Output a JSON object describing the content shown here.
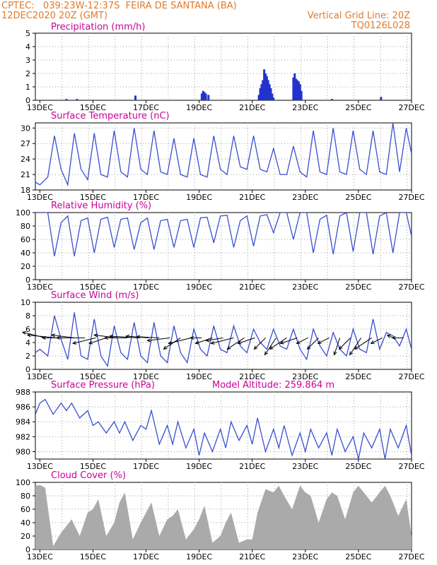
{
  "header": {
    "left_line1": "CPTEC:   039:23W-12:37S  FEIRA DE SANTANA (BA)",
    "left_line2": "12DEC2020 20Z (GMT)",
    "right_line1": "Vertical Grid Line: 20Z",
    "right_line2": "TQ0126L028"
  },
  "colors": {
    "header": "#e07a2c",
    "title": "#cc0099",
    "line": "#3a4fd0",
    "bar": "#2233cc",
    "cloud": "#aaaaaa",
    "grid": "#a0a0a0"
  },
  "x_ticks": [
    "13DEC",
    "15DEC",
    "17DEC",
    "19DEC",
    "21DEC",
    "23DEC",
    "25DEC",
    "27DEC"
  ],
  "x_tick_days": [
    13,
    15,
    17,
    19,
    21,
    23,
    25,
    27
  ],
  "x_range_days": [
    12.83,
    27.0
  ],
  "model_altitude": "Model Altitude: 259.864 m",
  "chart_data": [
    {
      "type": "bar",
      "title": "Precipitation (mm/h)",
      "ylim": [
        0,
        5
      ],
      "yticks": [
        0,
        1,
        2,
        3,
        4,
        5
      ],
      "x_days": [
        14.0,
        14.4,
        16.6,
        19.1,
        19.15,
        19.2,
        19.25,
        19.35,
        21.25,
        21.3,
        21.35,
        21.4,
        21.45,
        21.5,
        21.55,
        21.6,
        21.65,
        21.7,
        21.75,
        21.8,
        22.55,
        22.6,
        22.65,
        22.7,
        22.75,
        22.8,
        22.85,
        24.0,
        25.85
      ],
      "values": [
        0.1,
        0.1,
        0.35,
        0.5,
        0.7,
        0.6,
        0.5,
        0.4,
        0.4,
        0.9,
        1.2,
        1.5,
        2.3,
        2.0,
        1.8,
        1.5,
        1.2,
        0.9,
        0.5,
        0.2,
        1.7,
        2.0,
        1.6,
        1.5,
        1.4,
        1.2,
        0.7,
        0.1,
        0.25
      ]
    },
    {
      "type": "line",
      "title": "Surface Temperature (nC)",
      "ylim": [
        18,
        31
      ],
      "yticks": [
        18,
        21,
        24,
        27,
        30
      ],
      "x_days": [
        12.83,
        13.0,
        13.3,
        13.55,
        13.8,
        14.05,
        14.3,
        14.55,
        14.8,
        15.05,
        15.3,
        15.55,
        15.8,
        16.05,
        16.3,
        16.55,
        16.8,
        17.05,
        17.3,
        17.55,
        17.8,
        18.05,
        18.3,
        18.55,
        18.8,
        19.05,
        19.3,
        19.55,
        19.8,
        20.05,
        20.3,
        20.55,
        20.8,
        21.05,
        21.3,
        21.55,
        21.8,
        22.05,
        22.3,
        22.55,
        22.8,
        23.05,
        23.3,
        23.55,
        23.8,
        24.05,
        24.3,
        24.55,
        24.8,
        25.05,
        25.3,
        25.55,
        25.8,
        26.05,
        26.3,
        26.55,
        26.8,
        27.0
      ],
      "values": [
        19.5,
        19.0,
        20.5,
        28.5,
        22.0,
        19.0,
        29.0,
        22.0,
        20.0,
        29.0,
        21.0,
        20.5,
        29.5,
        21.5,
        20.5,
        30.0,
        22.0,
        21.0,
        29.5,
        21.5,
        21.0,
        28.0,
        21.0,
        20.5,
        28.0,
        21.0,
        20.5,
        28.5,
        22.0,
        21.0,
        28.5,
        22.5,
        22.0,
        28.5,
        22.0,
        21.5,
        26.0,
        21.0,
        21.0,
        26.5,
        21.5,
        20.5,
        29.5,
        21.5,
        21.0,
        30.0,
        21.5,
        21.0,
        29.5,
        22.0,
        21.0,
        29.5,
        21.5,
        21.0,
        31.0,
        21.5,
        30.0,
        25.0
      ]
    },
    {
      "type": "line",
      "title": "Relative Humidity (%)",
      "ylim": [
        0,
        100
      ],
      "yticks": [
        0,
        20,
        40,
        60,
        80,
        100
      ],
      "x_days": [
        12.83,
        13.0,
        13.3,
        13.55,
        13.8,
        14.05,
        14.3,
        14.55,
        14.8,
        15.05,
        15.3,
        15.55,
        15.8,
        16.05,
        16.3,
        16.55,
        16.8,
        17.05,
        17.3,
        17.55,
        17.8,
        18.05,
        18.3,
        18.55,
        18.8,
        19.05,
        19.3,
        19.55,
        19.8,
        20.05,
        20.3,
        20.55,
        20.8,
        21.05,
        21.3,
        21.55,
        21.8,
        22.05,
        22.3,
        22.55,
        22.8,
        23.05,
        23.3,
        23.55,
        23.8,
        24.05,
        24.3,
        24.55,
        24.8,
        25.05,
        25.3,
        25.55,
        25.8,
        26.05,
        26.3,
        26.55,
        26.8,
        27.0
      ],
      "values": [
        100,
        100,
        100,
        35,
        85,
        95,
        35,
        88,
        92,
        40,
        90,
        93,
        48,
        90,
        92,
        45,
        85,
        92,
        45,
        88,
        90,
        48,
        88,
        90,
        48,
        92,
        93,
        55,
        95,
        96,
        48,
        88,
        95,
        50,
        95,
        97,
        70,
        100,
        100,
        60,
        100,
        100,
        40,
        90,
        96,
        38,
        95,
        100,
        42,
        100,
        100,
        38,
        95,
        100,
        40,
        100,
        100,
        65
      ]
    },
    {
      "type": "line",
      "title": "Surface Wind (m/s)",
      "ylim": [
        0,
        10
      ],
      "yticks": [
        0,
        2,
        4,
        6,
        8,
        10
      ],
      "x_days": [
        12.83,
        13.0,
        13.3,
        13.55,
        13.8,
        14.05,
        14.3,
        14.55,
        14.8,
        15.05,
        15.3,
        15.55,
        15.8,
        16.05,
        16.3,
        16.55,
        16.8,
        17.05,
        17.3,
        17.55,
        17.8,
        18.05,
        18.3,
        18.55,
        18.8,
        19.05,
        19.3,
        19.55,
        19.8,
        20.05,
        20.3,
        20.55,
        20.8,
        21.05,
        21.3,
        21.55,
        21.8,
        22.05,
        22.3,
        22.55,
        22.8,
        23.05,
        23.3,
        23.55,
        23.8,
        24.05,
        24.3,
        24.55,
        24.8,
        25.05,
        25.3,
        25.55,
        25.8,
        26.05,
        26.3,
        26.55,
        26.8,
        27.0
      ],
      "values": [
        2.5,
        3.0,
        2.0,
        8.0,
        4.5,
        1.5,
        8.5,
        2.0,
        1.5,
        7.5,
        2.0,
        0.5,
        6.5,
        2.5,
        1.5,
        7.0,
        2.0,
        1.0,
        7.0,
        2.0,
        1.0,
        6.5,
        2.5,
        1.0,
        6.0,
        3.0,
        2.0,
        6.5,
        3.0,
        2.5,
        6.5,
        3.5,
        2.5,
        6.0,
        4.0,
        3.0,
        6.0,
        3.5,
        3.0,
        6.0,
        3.0,
        1.5,
        6.0,
        3.5,
        2.0,
        5.5,
        3.0,
        2.0,
        6.0,
        3.0,
        2.5,
        7.5,
        3.0,
        5.5,
        5.0,
        3.5,
        6.0,
        3.0
      ],
      "arrows": {
        "x_days": [
          13.2,
          13.6,
          13.95,
          14.3,
          14.7,
          15.1,
          15.5,
          15.9,
          16.3,
          16.7,
          17.1,
          17.5,
          17.9,
          18.3,
          18.7,
          19.1,
          19.5,
          19.9,
          20.3,
          20.7,
          21.1,
          21.5,
          21.9,
          22.3,
          22.7,
          23.1,
          23.5,
          23.9,
          24.3,
          24.7,
          25.1,
          25.5,
          25.9,
          26.3,
          26.7
        ],
        "u": [
          -4,
          -5,
          -4,
          -4,
          -5,
          -4,
          -3,
          -4,
          -4,
          -5,
          -4,
          -4,
          -4,
          -3,
          -4,
          -2,
          -3,
          -3,
          -4,
          -3,
          -3,
          -2,
          -2,
          -3,
          -3,
          -2,
          -2,
          -2,
          -1,
          -2,
          -2,
          -3,
          -2,
          -1,
          -2
        ],
        "v": [
          1,
          0.5,
          0,
          0.5,
          0,
          -1,
          -1,
          0.5,
          0,
          0.3,
          0.3,
          0.2,
          -0.5,
          -2,
          -1,
          0,
          -1,
          -0.5,
          -1,
          -2,
          -1,
          -2,
          -3,
          -2,
          -1,
          -1,
          -2,
          -1,
          -3,
          -2,
          -3,
          -2,
          -1,
          0.5,
          0
        ]
      }
    },
    {
      "type": "line",
      "title": "Surface Pressure (hPa)",
      "ylim": [
        979,
        988
      ],
      "yticks": [
        980,
        982,
        984,
        986,
        988
      ],
      "x_days": [
        12.83,
        13.0,
        13.2,
        13.5,
        13.8,
        14.0,
        14.2,
        14.5,
        14.8,
        15.0,
        15.2,
        15.5,
        15.8,
        16.0,
        16.2,
        16.5,
        16.8,
        17.0,
        17.2,
        17.5,
        17.8,
        18.0,
        18.2,
        18.5,
        18.8,
        19.0,
        19.2,
        19.5,
        19.8,
        20.0,
        20.2,
        20.5,
        20.8,
        21.0,
        21.2,
        21.5,
        21.8,
        22.0,
        22.2,
        22.5,
        22.8,
        23.0,
        23.2,
        23.5,
        23.8,
        24.0,
        24.2,
        24.5,
        24.8,
        25.0,
        25.2,
        25.5,
        25.8,
        26.0,
        26.2,
        26.5,
        26.8,
        27.0
      ],
      "values": [
        985.0,
        986.5,
        987.0,
        985.0,
        986.5,
        985.5,
        986.5,
        984.5,
        985.5,
        983.5,
        984.0,
        982.5,
        984.0,
        982.5,
        984.0,
        981.5,
        983.5,
        983.0,
        985.5,
        981.0,
        983.5,
        981.0,
        984.0,
        980.5,
        983.0,
        979.5,
        982.5,
        980.0,
        983.0,
        980.5,
        984.0,
        981.5,
        983.5,
        981.0,
        984.5,
        980.0,
        983.0,
        980.5,
        983.5,
        979.5,
        982.5,
        980.0,
        983.0,
        980.5,
        982.5,
        979.5,
        983.0,
        980.0,
        982.0,
        979.0,
        982.5,
        980.5,
        983.0,
        979.0,
        983.0,
        980.5,
        983.5,
        979.5
      ]
    },
    {
      "type": "area",
      "title": "Cloud Cover (%)",
      "ylim": [
        0,
        100
      ],
      "yticks": [
        0,
        20,
        40,
        60,
        80,
        100
      ],
      "x_days": [
        12.83,
        13.0,
        13.2,
        13.5,
        13.8,
        14.0,
        14.2,
        14.5,
        14.8,
        15.0,
        15.2,
        15.5,
        15.8,
        16.0,
        16.2,
        16.5,
        16.8,
        17.0,
        17.2,
        17.5,
        17.8,
        18.0,
        18.2,
        18.5,
        18.8,
        19.0,
        19.2,
        19.5,
        19.8,
        20.0,
        20.2,
        20.5,
        20.8,
        21.0,
        21.2,
        21.5,
        21.8,
        22.0,
        22.2,
        22.5,
        22.8,
        23.0,
        23.2,
        23.5,
        23.8,
        24.0,
        24.2,
        24.5,
        24.8,
        25.0,
        25.2,
        25.5,
        25.8,
        26.0,
        26.2,
        26.5,
        26.8,
        27.0
      ],
      "values": [
        95,
        96,
        92,
        5,
        25,
        35,
        45,
        20,
        55,
        60,
        75,
        20,
        40,
        70,
        85,
        15,
        40,
        55,
        70,
        20,
        45,
        50,
        60,
        15,
        30,
        45,
        65,
        10,
        20,
        40,
        55,
        10,
        15,
        15,
        55,
        90,
        85,
        95,
        80,
        60,
        95,
        85,
        80,
        40,
        75,
        85,
        80,
        45,
        85,
        95,
        85,
        70,
        85,
        95,
        80,
        50,
        75,
        20
      ]
    }
  ]
}
